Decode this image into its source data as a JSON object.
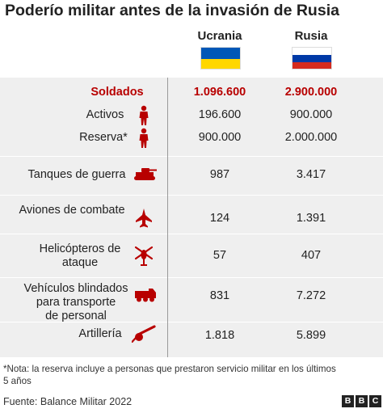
{
  "title": "Poderío militar antes de la invasión de Rusia",
  "columns": {
    "ukraine": "Ucrania",
    "russia": "Rusia"
  },
  "colors": {
    "accent_red": "#b80000",
    "icon_red": "#b80000",
    "ukraine_blue": "#0057b7",
    "ukraine_yellow": "#ffd700",
    "russia_white": "#ffffff",
    "russia_blue": "#0039a6",
    "russia_red": "#d52b1e"
  },
  "chart_data": {
    "type": "table",
    "columns": [
      "Ucrania",
      "Rusia"
    ],
    "rows": [
      {
        "label": "Soldados",
        "icon": "",
        "ukraine": "1.096.600",
        "russia": "2.900.000",
        "highlight": true
      },
      {
        "label": "Activos",
        "icon": "soldier-icon",
        "ukraine": "196.600",
        "russia": "900.000"
      },
      {
        "label": "Reserva*",
        "icon": "soldier-icon",
        "ukraine": "900.000",
        "russia": "2.000.000"
      },
      {
        "label": "Tanques de guerra",
        "icon": "tank-icon",
        "ukraine": "987",
        "russia": "3.417"
      },
      {
        "label": "Aviones de combate",
        "icon": "fighter-jet-icon",
        "ukraine": "124",
        "russia": "1.391"
      },
      {
        "label": "Helicópteros de ataque",
        "label_lines": [
          "Helicópteros de",
          "ataque"
        ],
        "icon": "helicopter-icon",
        "ukraine": "57",
        "russia": "407"
      },
      {
        "label": "Vehículos blindados para transporte de personal",
        "label_lines": [
          "Vehículos blindados",
          "para transporte",
          "de personal"
        ],
        "icon": "armored-vehicle-icon",
        "ukraine": "831",
        "russia": "7.272"
      },
      {
        "label": "Artillería",
        "icon": "artillery-icon",
        "ukraine": "1.818",
        "russia": "5.899"
      }
    ]
  },
  "footer": {
    "note_line1": "*Nota: la reserva incluye a personas que prestaron servicio militar en los últimos",
    "note_line2": "5 años",
    "source": "Fuente: Balance Militar 2022",
    "logo_letters": [
      "B",
      "B",
      "C"
    ]
  }
}
